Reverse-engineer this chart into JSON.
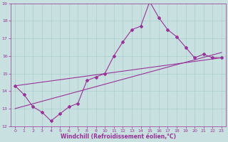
{
  "x": [
    0,
    1,
    2,
    3,
    4,
    5,
    6,
    7,
    8,
    9,
    10,
    11,
    12,
    13,
    14,
    15,
    16,
    17,
    18,
    19,
    20,
    21,
    22,
    23
  ],
  "y": [
    14.3,
    13.8,
    13.1,
    12.8,
    12.3,
    12.7,
    13.1,
    13.3,
    14.6,
    14.8,
    15.0,
    16.0,
    16.8,
    17.5,
    17.7,
    19.1,
    18.2,
    17.5,
    17.1,
    16.5,
    15.9,
    16.1,
    15.9,
    15.9
  ],
  "trend1_x": [
    0,
    23
  ],
  "trend1_y": [
    13.0,
    16.2
  ],
  "trend2_x": [
    0,
    23
  ],
  "trend2_y": [
    14.3,
    15.9
  ],
  "line_color": "#993399",
  "bg_color": "#c8e0e0",
  "grid_color": "#aacccc",
  "xlabel": "Windchill (Refroidissement éolien,°C)",
  "xlim": [
    -0.5,
    23.5
  ],
  "ylim": [
    12,
    19
  ],
  "xticks": [
    0,
    1,
    2,
    3,
    4,
    5,
    6,
    7,
    8,
    9,
    10,
    11,
    12,
    13,
    14,
    15,
    16,
    17,
    18,
    19,
    20,
    21,
    22,
    23
  ],
  "yticks": [
    12,
    13,
    14,
    15,
    16,
    17,
    18,
    19
  ],
  "xlabel_color": "#993399",
  "tick_color": "#993399",
  "tick_fontsize": 4.5,
  "xlabel_fontsize": 5.5
}
